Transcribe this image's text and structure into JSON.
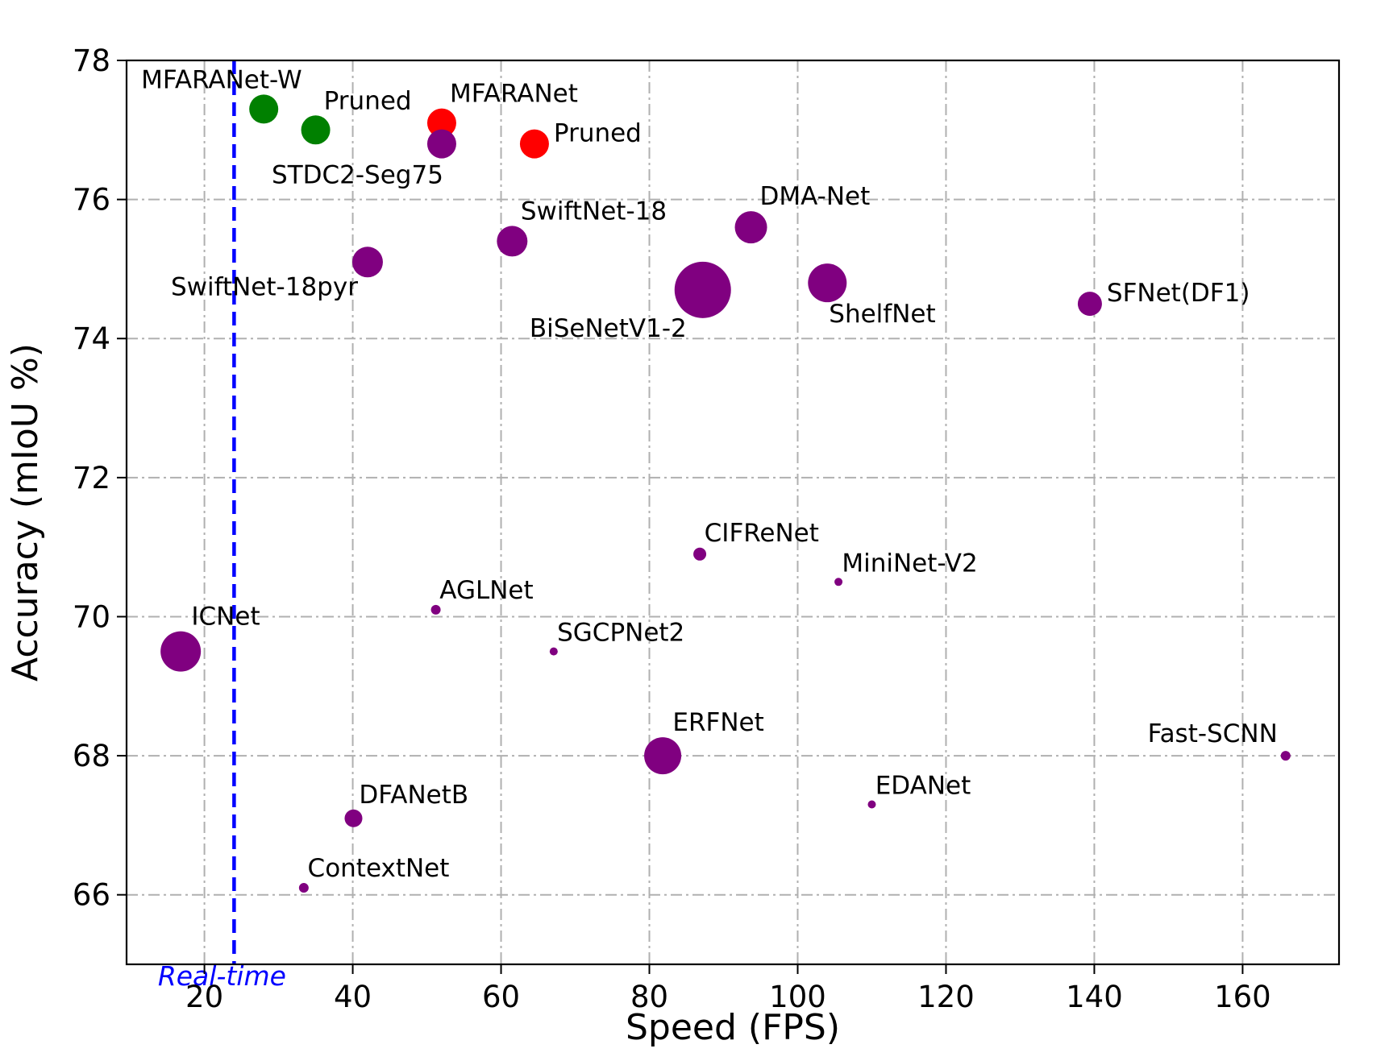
{
  "chart_data": {
    "type": "scatter",
    "title": "",
    "xlabel": "Speed (FPS)",
    "ylabel": "Accuracy (mIoU %)",
    "xlim": [
      9.5,
      173
    ],
    "ylim": [
      65,
      78
    ],
    "xticks": [
      20,
      40,
      60,
      80,
      100,
      120,
      140,
      160
    ],
    "yticks": [
      66,
      68,
      70,
      72,
      74,
      76,
      78
    ],
    "grid": true,
    "colors": {
      "default": "#800080",
      "green": "#008000",
      "red": "#ff0000",
      "realtime": "#0000ff"
    },
    "reference_line": {
      "x": 24,
      "label": "Real-time",
      "color": "#0000ff"
    },
    "points": [
      {
        "name": "MFARANet-W",
        "x": 28,
        "y": 77.3,
        "size": 18,
        "color": "#008000",
        "label": "MFARANet-W",
        "label_pos": "above-left"
      },
      {
        "name": "MFARANet-W Pruned",
        "x": 35,
        "y": 77.0,
        "size": 18,
        "color": "#008000",
        "label": "Pruned",
        "label_pos": "above-right"
      },
      {
        "name": "MFARANet",
        "x": 52,
        "y": 77.1,
        "size": 18,
        "color": "#ff0000",
        "label": "MFARANet",
        "label_pos": "above-right"
      },
      {
        "name": "MFARANet Pruned",
        "x": 64.5,
        "y": 76.8,
        "size": 18,
        "color": "#ff0000",
        "label": "Pruned",
        "label_pos": "right"
      },
      {
        "name": "STDC2-Seg75",
        "x": 52,
        "y": 76.8,
        "size": 18,
        "color": "#800080",
        "label": "STDC2-Seg75",
        "label_pos": "below-left"
      },
      {
        "name": "SwiftNet-18",
        "x": 61.5,
        "y": 75.4,
        "size": 19,
        "color": "#800080",
        "label": "SwiftNet-18",
        "label_pos": "above-right"
      },
      {
        "name": "SwiftNet-18pyr",
        "x": 42,
        "y": 75.1,
        "size": 19,
        "color": "#800080",
        "label": "SwiftNet-18pyr",
        "label_pos": "below-left"
      },
      {
        "name": "DMA-Net",
        "x": 93.7,
        "y": 75.6,
        "size": 20,
        "color": "#800080",
        "label": "DMA-Net",
        "label_pos": "above-right"
      },
      {
        "name": "BiSeNetV1-2",
        "x": 87.2,
        "y": 74.7,
        "size": 35,
        "color": "#800080",
        "label": "BiSeNetV1-2",
        "label_pos": "below-left"
      },
      {
        "name": "ShelfNet",
        "x": 104,
        "y": 74.8,
        "size": 24,
        "color": "#800080",
        "label": "ShelfNet",
        "label_pos": "below"
      },
      {
        "name": "SFNet(DF1)",
        "x": 139.4,
        "y": 74.5,
        "size": 15,
        "color": "#800080",
        "label": "SFNet(DF1)",
        "label_pos": "right"
      },
      {
        "name": "CIFReNet",
        "x": 86.8,
        "y": 70.9,
        "size": 8,
        "color": "#800080",
        "label": "CIFReNet",
        "label_pos": "above-right"
      },
      {
        "name": "MiniNet-V2",
        "x": 105.5,
        "y": 70.5,
        "size": 5,
        "color": "#800080",
        "label": "MiniNet-V2",
        "label_pos": "above-right"
      },
      {
        "name": "AGLNet",
        "x": 51.2,
        "y": 70.1,
        "size": 6,
        "color": "#800080",
        "label": "AGLNet",
        "label_pos": "above-right"
      },
      {
        "name": "SGCPNet2",
        "x": 67.1,
        "y": 69.5,
        "size": 5,
        "color": "#800080",
        "label": "SGCPNet2",
        "label_pos": "above-right"
      },
      {
        "name": "ICNet",
        "x": 16.8,
        "y": 69.5,
        "size": 25,
        "color": "#800080",
        "label": "ICNet",
        "label_pos": "above-right"
      },
      {
        "name": "ERFNet",
        "x": 81.8,
        "y": 68.0,
        "size": 23,
        "color": "#800080",
        "label": "ERFNet",
        "label_pos": "above-right"
      },
      {
        "name": "Fast-SCNN",
        "x": 165.8,
        "y": 68.0,
        "size": 6,
        "color": "#800080",
        "label": "Fast-SCNN",
        "label_pos": "above-left"
      },
      {
        "name": "EDANet",
        "x": 110,
        "y": 67.3,
        "size": 5,
        "color": "#800080",
        "label": "EDANet",
        "label_pos": "above-right"
      },
      {
        "name": "DFANetB",
        "x": 40.1,
        "y": 67.1,
        "size": 11,
        "color": "#800080",
        "label": "DFANetB",
        "label_pos": "above-right"
      },
      {
        "name": "ContextNet",
        "x": 33.4,
        "y": 66.1,
        "size": 6,
        "color": "#800080",
        "label": "ContextNet",
        "label_pos": "above-right"
      }
    ]
  }
}
